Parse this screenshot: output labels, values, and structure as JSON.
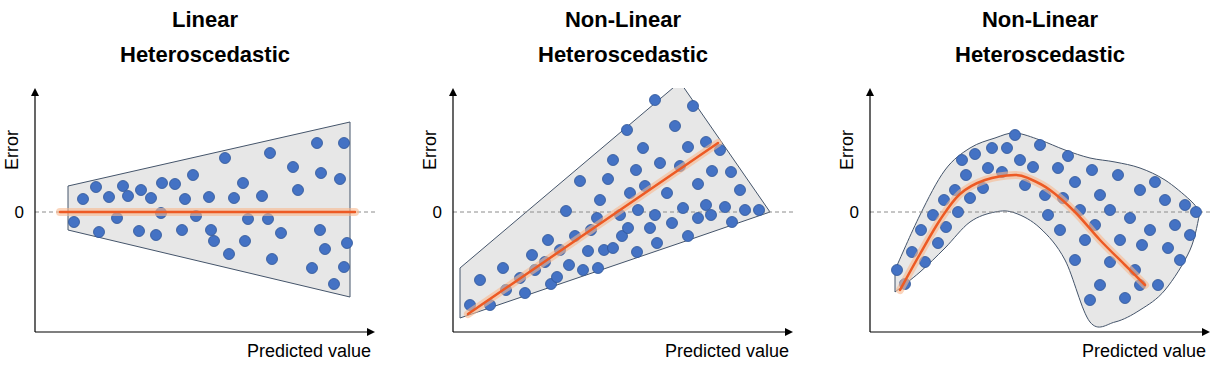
{
  "chart_data": [
    {
      "type": "scatter",
      "title": "Linear Heteroscedastic",
      "x_label": "Predicted value",
      "y_label": "Error",
      "xlim": [
        0,
        340
      ],
      "ylim": [
        -120,
        124
      ],
      "yticks": [
        0
      ],
      "grid": true,
      "tick_labels": "y",
      "series": [
        {
          "type": "area",
          "color": "#e7e7e7",
          "line_style": "solid",
          "x": [
            33,
            315
          ],
          "upper": [
            26,
            90
          ],
          "lower": [
            -18,
            -85
          ]
        },
        {
          "type": "scatter",
          "color": "#4472c4",
          "marker": "circle",
          "x": [
            39,
            48,
            61,
            64,
            74,
            82,
            88,
            93,
            104,
            106,
            116,
            121,
            126,
            127,
            140,
            147,
            150,
            158,
            161,
            174,
            176,
            179,
            190,
            194,
            199,
            208,
            210,
            213,
            227,
            233,
            235,
            237,
            246,
            258,
            263,
            277,
            282,
            285,
            286,
            290,
            305,
            309,
            309,
            312,
            299
          ],
          "values": [
            -10,
            13,
            25,
            -20,
            15,
            -6,
            26,
            16,
            -19,
            22,
            14,
            -23,
            -1,
            29,
            28,
            -18,
            13,
            37,
            -4,
            15,
            -18,
            -29,
            54,
            -42,
            14,
            29,
            -29,
            -7,
            16,
            -7,
            59,
            -47,
            -21,
            45,
            22,
            -56,
            69,
            -18,
            39,
            -37,
            33,
            69,
            -55,
            -31,
            -72
          ]
        },
        {
          "type": "line",
          "color": "#ed5a24",
          "line_style": "solid",
          "x": [
            25,
            320
          ],
          "values": [
            0,
            0
          ]
        }
      ]
    },
    {
      "type": "scatter",
      "title": "Non-Linear Heteroscedastic",
      "x_label": "Predicted value",
      "y_label": "Error",
      "xlim": [
        0,
        340
      ],
      "ylim": [
        -120,
        124
      ],
      "yticks": [
        0
      ],
      "grid": true,
      "tick_labels": "y",
      "series": [
        {
          "type": "area",
          "color": "#e7e7e7",
          "line_style": "solid",
          "x": [
            7,
            227,
            317
          ],
          "upper": [
            -56,
            130,
            0
          ],
          "lower": [
            -106,
            -31,
            0
          ]
        },
        {
          "type": "scatter",
          "color": "#4472c4",
          "marker": "circle",
          "x": [
            17,
            27,
            37,
            50,
            53,
            67,
            72,
            79,
            82,
            92,
            95,
            98,
            104,
            107,
            113,
            116,
            122,
            127,
            130,
            135,
            138,
            144,
            147,
            151,
            155,
            160,
            160,
            167,
            169,
            174,
            175,
            177,
            183,
            185,
            190,
            192,
            197,
            202,
            202,
            207,
            214,
            219,
            222,
            227,
            230,
            235,
            240,
            245,
            253,
            258,
            259,
            267,
            278,
            279,
            287,
            292,
            306,
            245,
            235,
            253,
            145,
            184,
            204,
            272
          ],
          "values": [
            -93,
            -68,
            -93,
            -56,
            -78,
            -66,
            -81,
            -43,
            -58,
            -50,
            -28,
            -72,
            -65,
            -38,
            1,
            -53,
            -24,
            31,
            -58,
            -39,
            -18,
            -6,
            12,
            -38,
            33,
            52,
            -36,
            -3,
            -24,
            82,
            -16,
            19,
            42,
            2,
            64,
            26,
            -16,
            112,
            -3,
            49,
            19,
            -11,
            86,
            46,
            4,
            65,
            106,
            28,
            70,
            -3,
            41,
            62,
            40,
            -10,
            22,
            2,
            2,
            -6,
            -24,
            7,
            -56,
            -40,
            -31,
            5
          ]
        },
        {
          "type": "line",
          "color": "#ed5a24",
          "line_style": "solid",
          "x": [
            15,
            265
          ],
          "values": [
            -102,
            69
          ]
        }
      ]
    },
    {
      "type": "scatter",
      "title": "Non-Linear Heteroscedastic",
      "x_label": "Predicted value",
      "y_label": "Error",
      "xlim": [
        0,
        340
      ],
      "ylim": [
        -120,
        124
      ],
      "yticks": [
        0
      ],
      "grid": true,
      "tick_labels": "y",
      "series": [
        {
          "type": "area",
          "color": "#e7e7e7",
          "line_style": "smooth",
          "x": [
            25,
            50,
            75,
            100,
            125,
            145,
            170,
            195,
            220,
            245,
            270,
            295,
            320,
            330
          ],
          "upper": [
            -58,
            -3,
            42,
            64,
            74,
            79,
            72,
            62,
            54,
            50,
            44,
            32,
            12,
            0
          ],
          "lower": [
            -80,
            -60,
            -36,
            -10,
            0,
            -1,
            -16,
            -48,
            -110,
            -110,
            -98,
            -78,
            -38,
            0
          ]
        },
        {
          "type": "scatter",
          "color": "#4472c4",
          "marker": "circle",
          "x": [
            27,
            35,
            42,
            51,
            55,
            63,
            68,
            74,
            76,
            85,
            88,
            92,
            96,
            100,
            105,
            113,
            118,
            122,
            132,
            137,
            145,
            150,
            155,
            163,
            170,
            175,
            178,
            188,
            190,
            193,
            198,
            205,
            205,
            210,
            215,
            222,
            220,
            225,
            230,
            230,
            240,
            240,
            248,
            250,
            255,
            260,
            265,
            270,
            272,
            280,
            285,
            288,
            295,
            298,
            305,
            310,
            315,
            326,
            320,
            270
          ],
          "values": [
            -58,
            -72,
            -40,
            -18,
            -50,
            -3,
            -31,
            12,
            -15,
            22,
            0,
            52,
            37,
            14,
            58,
            24,
            44,
            64,
            40,
            64,
            77,
            52,
            27,
            45,
            67,
            17,
            -3,
            44,
            -18,
            14,
            56,
            30,
            -48,
            2,
            -28,
            42,
            -88,
            -13,
            17,
            -73,
            2,
            -50,
            37,
            -28,
            -86,
            -6,
            -58,
            22,
            -33,
            -18,
            30,
            -73,
            12,
            -36,
            -13,
            -48,
            7,
            0,
            -23,
            -73
          ]
        },
        {
          "type": "line",
          "color": "#ed5a24",
          "line_style": "smooth",
          "x": [
            30,
            50,
            70,
            90,
            115,
            145,
            160,
            180,
            205,
            230,
            255,
            275
          ],
          "values": [
            -78,
            -42,
            -8,
            18,
            32,
            37,
            33,
            22,
            0,
            -28,
            -53,
            -73
          ]
        }
      ]
    }
  ]
}
